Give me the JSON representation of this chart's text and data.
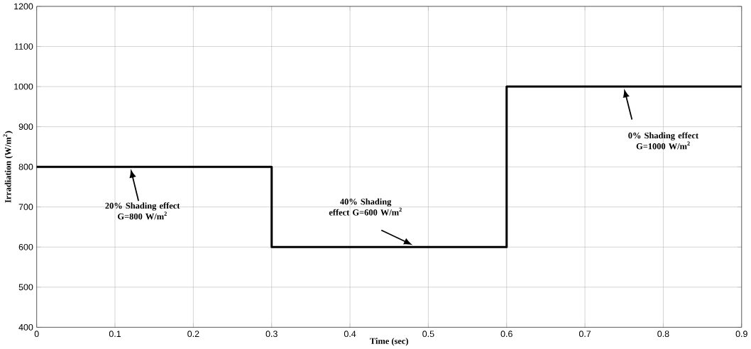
{
  "chart_data": {
    "type": "step",
    "xlabel": "Time (sec)",
    "ylabel": "Irradiation (W/m$^{2}$)",
    "x": [
      0,
      0.3,
      0.6,
      0.9
    ],
    "values": [
      800,
      600,
      1000,
      1000
    ],
    "color": "#000000",
    "xlim": [
      0,
      0.9
    ],
    "ylim": [
      400,
      1200
    ],
    "xticks": [
      0,
      0.1,
      0.2,
      0.3,
      0.4,
      0.5,
      0.6,
      0.7,
      0.8,
      0.9
    ],
    "yticks": [
      400,
      500,
      600,
      700,
      800,
      900,
      1000,
      1100,
      1200
    ],
    "grid": true,
    "annotations": [
      "20% Shading effect G=800 W/m$^{2}$",
      "40% Shading effect G=600 W/m$^{2}$",
      "0% Shading effect G=1000 W/m$^{2}$"
    ]
  }
}
